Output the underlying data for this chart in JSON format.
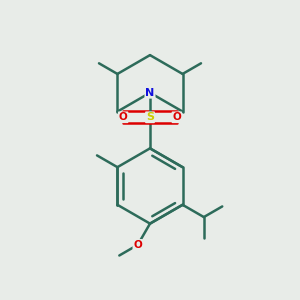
{
  "background_color": "#e8ece8",
  "bond_color": "#2d6b5a",
  "N_color": "#1010dd",
  "S_color": "#cccc00",
  "O_color": "#dd0000",
  "bond_width": 1.8,
  "figsize": [
    3.0,
    3.0
  ],
  "dpi": 100,
  "xlim": [
    0.15,
    0.85
  ],
  "ylim": [
    0.08,
    0.98
  ]
}
